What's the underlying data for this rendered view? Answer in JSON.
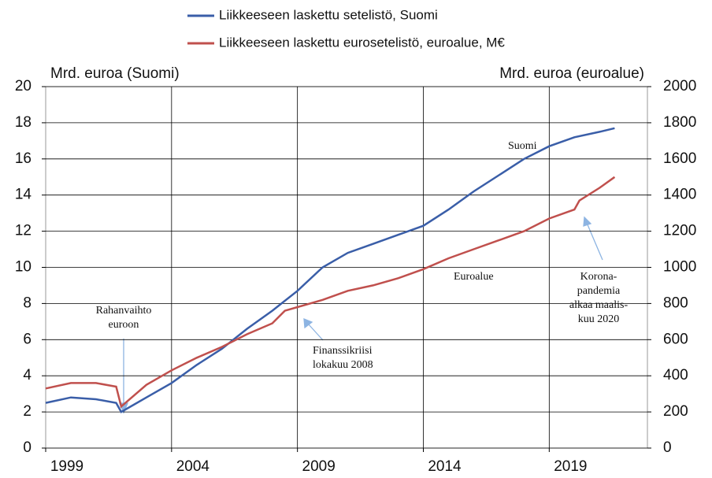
{
  "chart_data": {
    "type": "line",
    "y_label": "Mrd. euroa (Suomi)",
    "y2_label": "Mrd. euroa (euroalue)",
    "xlim": [
      1999,
      2022.9
    ],
    "xticks": [
      1999,
      2004,
      2009,
      2014,
      2019
    ],
    "ylim": [
      0,
      20
    ],
    "yticks": [
      0,
      2,
      4,
      6,
      8,
      10,
      12,
      14,
      16,
      18,
      20
    ],
    "y2lim": [
      0,
      2000
    ],
    "y2ticks": [
      0,
      200,
      400,
      600,
      800,
      1000,
      1200,
      1400,
      1600,
      1800,
      2000
    ],
    "grid": true,
    "series": [
      {
        "name": "Liikkeeseen laskettu setelistö, Suomi",
        "color": "#3a5ea8",
        "x": [
          1999,
          2000,
          2001,
          2001.8,
          2002,
          2003,
          2004,
          2005,
          2006,
          2007,
          2008,
          2009,
          2010,
          2011,
          2012,
          2013,
          2014,
          2015,
          2016,
          2017,
          2018,
          2019,
          2020,
          2021,
          2021.6
        ],
        "values": [
          2.5,
          2.8,
          2.7,
          2.5,
          2.0,
          2.8,
          3.6,
          4.6,
          5.5,
          6.6,
          7.6,
          8.7,
          10.0,
          10.8,
          11.3,
          11.8,
          12.3,
          13.2,
          14.2,
          15.1,
          16.0,
          16.7,
          17.2,
          17.5,
          17.7
        ]
      },
      {
        "name": "Liikkeeseen laskettu eurosetelistö, euroalue, M€",
        "color": "#c0504d",
        "axis": "y2",
        "x": [
          1999,
          2000,
          2001,
          2001.8,
          2002,
          2003,
          2004,
          2005,
          2006,
          2007,
          2008,
          2008.5,
          2009,
          2010,
          2011,
          2012,
          2013,
          2014,
          2015,
          2016,
          2017,
          2018,
          2019,
          2020,
          2020.2,
          2021,
          2021.6
        ],
        "values": [
          330,
          360,
          360,
          340,
          230,
          350,
          430,
          500,
          560,
          630,
          690,
          760,
          780,
          820,
          870,
          900,
          940,
          990,
          1050,
          1100,
          1150,
          1200,
          1270,
          1320,
          1370,
          1440,
          1500
        ]
      }
    ],
    "annotations": [
      {
        "lines": [
          "Suomi"
        ]
      },
      {
        "lines": [
          "Euroalue"
        ]
      },
      {
        "lines": [
          "Rahanvaihto",
          "euroon"
        ]
      },
      {
        "lines": [
          "Finanssikriisi",
          "lokakuu  2008"
        ]
      },
      {
        "lines": [
          "Korona-",
          "pandemia",
          "alkaa maalis-",
          "kuu 2020"
        ]
      }
    ]
  }
}
